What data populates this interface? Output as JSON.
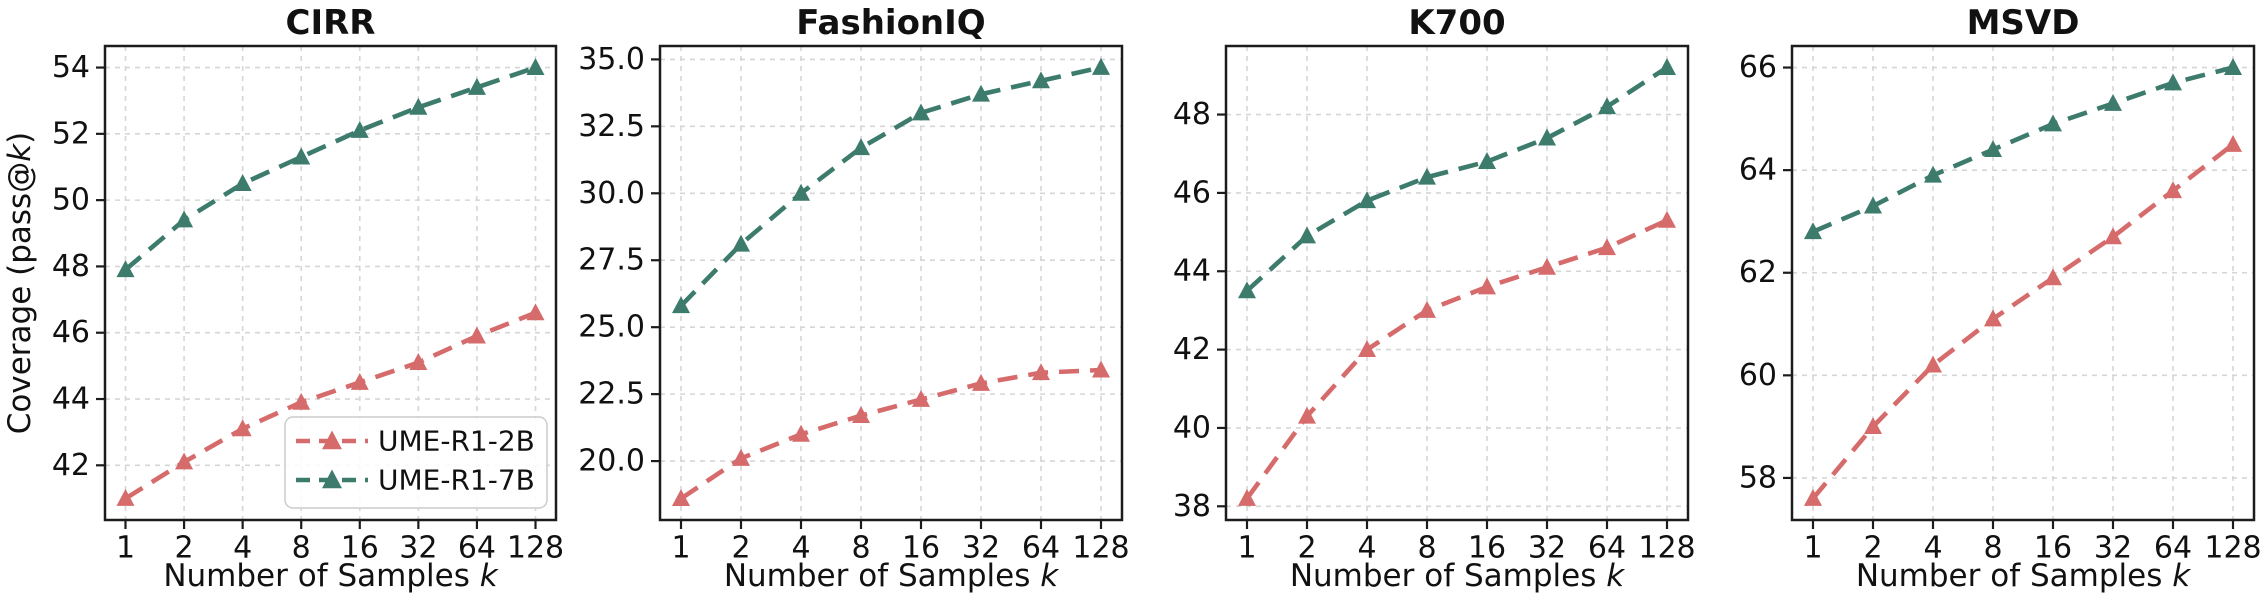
{
  "figure": {
    "background_color": "#ffffff",
    "axis_color": "#1c1c1c",
    "text_color": "#111111",
    "grid_color": "#d6d6d6",
    "ylabel_full": "Coverage (pass@k)",
    "ylabel_parts": {
      "pre": "Coverage (pass@",
      "var": "k",
      "post": ")"
    },
    "xlabel_full": "Number of Samples k",
    "xlabel_parts": {
      "pre": "Number of Samples ",
      "var": "k"
    }
  },
  "legend": {
    "location": "lower-right-of-first-panel",
    "items": [
      {
        "label": "UME-R1-2B",
        "color": "#d66b6c",
        "marker": "triangle-up",
        "linestyle": "dashed"
      },
      {
        "label": "UME-R1-7B",
        "color": "#3d7c6d",
        "marker": "triangle-up",
        "linestyle": "dashed"
      }
    ]
  },
  "chart_data": [
    {
      "type": "line",
      "title": "CIRR",
      "categories": [
        "1",
        "2",
        "4",
        "8",
        "16",
        "32",
        "64",
        "128"
      ],
      "xlabel": "Number of Samples k",
      "ylabel": "Coverage (pass@k)",
      "show_ylabel": true,
      "show_legend": true,
      "grid": true,
      "xscale": "log2-categorical",
      "ylim": [
        40.35,
        54.65
      ],
      "ytick_values": [
        42,
        44,
        46,
        48,
        50,
        52,
        54
      ],
      "ytick_labels": [
        "42",
        "44",
        "46",
        "48",
        "50",
        "52",
        "54"
      ],
      "series": [
        {
          "name": "UME-R1-2B",
          "color": "#d66b6c",
          "values": [
            41.0,
            42.1,
            43.1,
            43.9,
            44.5,
            45.1,
            45.9,
            46.6
          ]
        },
        {
          "name": "UME-R1-7B",
          "color": "#3d7c6d",
          "values": [
            47.9,
            49.4,
            50.5,
            51.3,
            52.1,
            52.8,
            53.4,
            54.0
          ]
        }
      ]
    },
    {
      "type": "line",
      "title": "FashionIQ",
      "categories": [
        "1",
        "2",
        "4",
        "8",
        "16",
        "32",
        "64",
        "128"
      ],
      "xlabel": "Number of Samples k",
      "ylabel": "",
      "show_ylabel": false,
      "show_legend": false,
      "grid": true,
      "xscale": "log2-categorical",
      "ylim": [
        17.8,
        35.5
      ],
      "ytick_values": [
        20.0,
        22.5,
        25.0,
        27.5,
        30.0,
        32.5,
        35.0
      ],
      "ytick_labels": [
        "20.0",
        "22.5",
        "25.0",
        "27.5",
        "30.0",
        "32.5",
        "35.0"
      ],
      "series": [
        {
          "name": "UME-R1-2B",
          "color": "#d66b6c",
          "values": [
            18.6,
            20.1,
            21.0,
            21.7,
            22.3,
            22.9,
            23.3,
            23.4
          ]
        },
        {
          "name": "UME-R1-7B",
          "color": "#3d7c6d",
          "values": [
            25.8,
            28.1,
            30.0,
            31.7,
            33.0,
            33.7,
            34.2,
            34.7
          ]
        }
      ]
    },
    {
      "type": "line",
      "title": "K700",
      "categories": [
        "1",
        "2",
        "4",
        "8",
        "16",
        "32",
        "64",
        "128"
      ],
      "xlabel": "Number of Samples k",
      "ylabel": "",
      "show_ylabel": false,
      "show_legend": false,
      "grid": true,
      "xscale": "log2-categorical",
      "ylim": [
        37.65,
        49.75
      ],
      "ytick_values": [
        38,
        40,
        42,
        44,
        46,
        48
      ],
      "ytick_labels": [
        "38",
        "40",
        "42",
        "44",
        "46",
        "48"
      ],
      "series": [
        {
          "name": "UME-R1-2B",
          "color": "#d66b6c",
          "values": [
            38.2,
            40.3,
            42.0,
            43.0,
            43.6,
            44.1,
            44.6,
            45.3
          ]
        },
        {
          "name": "UME-R1-7B",
          "color": "#3d7c6d",
          "values": [
            43.5,
            44.9,
            45.8,
            46.4,
            46.8,
            47.4,
            48.2,
            49.2
          ]
        }
      ]
    },
    {
      "type": "line",
      "title": "MSVD",
      "categories": [
        "1",
        "2",
        "4",
        "8",
        "16",
        "32",
        "64",
        "128"
      ],
      "xlabel": "Number of Samples k",
      "ylabel": "",
      "show_ylabel": false,
      "show_legend": false,
      "grid": true,
      "xscale": "log2-categorical",
      "ylim": [
        57.18,
        66.42
      ],
      "ytick_values": [
        58,
        60,
        62,
        64,
        66
      ],
      "ytick_labels": [
        "58",
        "60",
        "62",
        "64",
        "66"
      ],
      "series": [
        {
          "name": "UME-R1-2B",
          "color": "#d66b6c",
          "values": [
            57.6,
            59.0,
            60.2,
            61.1,
            61.9,
            62.7,
            63.6,
            64.5
          ]
        },
        {
          "name": "UME-R1-7B",
          "color": "#3d7c6d",
          "values": [
            62.8,
            63.3,
            63.9,
            64.4,
            64.9,
            65.3,
            65.7,
            66.0
          ]
        }
      ]
    }
  ]
}
